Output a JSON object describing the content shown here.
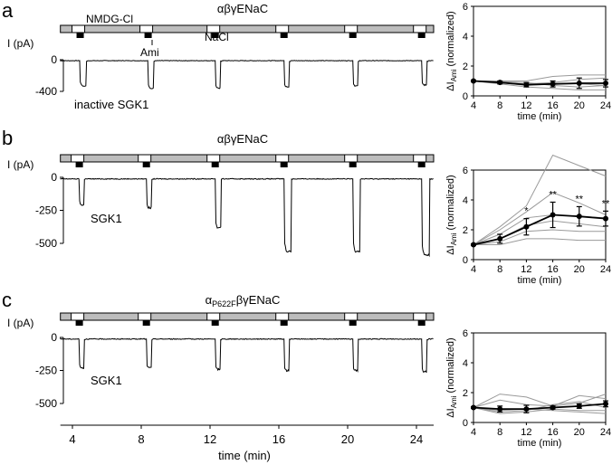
{
  "panels": [
    {
      "letter": "a",
      "title": "αβγENaC",
      "trace_ylabel": "I (pA)",
      "trace_yticks": [
        "0",
        "-400"
      ],
      "trace_ymin": -400,
      "trace_label": "inactive SGK1",
      "bar_labels": {
        "nmdg": "NMDG-Cl",
        "ami": "Ami",
        "nacl": "NaCl"
      },
      "pulses": [
        {
          "t": 4.45,
          "peak": -330,
          "hold": -50,
          "width": 0.35
        },
        {
          "t": 8.4,
          "peak": -360,
          "hold": -50,
          "width": 0.3
        },
        {
          "t": 12.3,
          "peak": -360,
          "hold": -50,
          "width": 0.3
        },
        {
          "t": 16.3,
          "peak": -340,
          "hold": -50,
          "width": 0.3
        },
        {
          "t": 20.3,
          "peak": -330,
          "hold": -50,
          "width": 0.3
        },
        {
          "t": 24.3,
          "peak": -320,
          "hold": -50,
          "width": 0.3
        }
      ]
    },
    {
      "letter": "b",
      "title": "αβγENaC",
      "trace_ylabel": "I (pA)",
      "trace_yticks": [
        "0",
        "-250",
        "-500"
      ],
      "trace_ymin": -500,
      "trace_label": "SGK1",
      "pulses": [
        {
          "t": 4.4,
          "peak": -210,
          "hold": -35,
          "width": 0.3
        },
        {
          "t": 8.3,
          "peak": -230,
          "hold": -35,
          "width": 0.3
        },
        {
          "t": 12.3,
          "peak": -380,
          "hold": -35,
          "width": 0.35
        },
        {
          "t": 16.3,
          "peak": -560,
          "hold": -35,
          "width": 0.4
        },
        {
          "t": 20.3,
          "peak": -560,
          "hold": -35,
          "width": 0.4
        },
        {
          "t": 24.3,
          "peak": -590,
          "hold": -35,
          "width": 0.45
        }
      ]
    },
    {
      "letter": "c",
      "title_prefix": "α",
      "title_sub": "P622F",
      "title_suffix": "βγENaC",
      "trace_ylabel": "I (pA)",
      "trace_yticks": [
        "0",
        "-250",
        "-500"
      ],
      "trace_ymin": -500,
      "trace_label": "SGK1",
      "pulses": [
        {
          "t": 4.4,
          "peak": -230,
          "hold": -40,
          "width": 0.3
        },
        {
          "t": 8.3,
          "peak": -230,
          "hold": -40,
          "width": 0.3
        },
        {
          "t": 12.3,
          "peak": -240,
          "hold": -40,
          "width": 0.3
        },
        {
          "t": 16.3,
          "peak": -250,
          "hold": -40,
          "width": 0.3
        },
        {
          "t": 20.3,
          "peak": -250,
          "hold": -40,
          "width": 0.3
        },
        {
          "t": 24.3,
          "peak": -260,
          "hold": -40,
          "width": 0.3
        }
      ]
    }
  ],
  "trace_xaxis": {
    "ticks": [
      "4",
      "8",
      "12",
      "16",
      "20",
      "24"
    ],
    "label": "time (min)"
  },
  "chart_data": [
    {
      "type": "line",
      "panel": "a",
      "ylabel_prefix": "ΔI",
      "ylabel_sub": "Ami",
      "ylabel_suffix": " (normalized)",
      "xlabel": "time (min)",
      "x": [
        4,
        8,
        12,
        16,
        20,
        24
      ],
      "xlim": [
        4,
        24
      ],
      "ylim": [
        0,
        6
      ],
      "yticks": [
        0,
        2,
        4,
        6
      ],
      "mean": [
        1.0,
        0.9,
        0.75,
        0.8,
        0.85,
        0.85
      ],
      "error": [
        0.05,
        0.1,
        0.15,
        0.2,
        0.35,
        0.25
      ],
      "significance": [
        "",
        "",
        "",
        "",
        "",
        ""
      ],
      "individual": [
        [
          1.0,
          1.0,
          1.0,
          1.3,
          1.4,
          1.4
        ],
        [
          1.0,
          0.9,
          0.8,
          0.9,
          1.1,
          1.2
        ],
        [
          1.0,
          0.8,
          0.6,
          0.5,
          0.4,
          0.4
        ],
        [
          1.0,
          0.9,
          0.7,
          0.8,
          0.8,
          0.7
        ],
        [
          1.0,
          0.95,
          0.9,
          0.7,
          0.6,
          0.7
        ]
      ]
    },
    {
      "type": "line",
      "panel": "b",
      "ylabel_prefix": "ΔI",
      "ylabel_sub": "Ami",
      "ylabel_suffix": " (normalized)",
      "xlabel": "time (min)",
      "x": [
        4,
        8,
        12,
        16,
        20,
        24
      ],
      "xlim": [
        4,
        24
      ],
      "ylim": [
        0,
        6
      ],
      "yticks": [
        0,
        2,
        4,
        6
      ],
      "mean": [
        1.0,
        1.4,
        2.2,
        3.0,
        2.9,
        2.75
      ],
      "error": [
        0.05,
        0.3,
        0.55,
        0.85,
        0.65,
        0.5
      ],
      "significance": [
        "",
        "",
        "*",
        "**",
        "**",
        "**"
      ],
      "individual": [
        [
          1.0,
          2.2,
          3.6,
          7.0,
          6.3,
          5.6
        ],
        [
          1.0,
          2.0,
          3.2,
          4.5,
          3.8,
          3.0
        ],
        [
          1.0,
          1.7,
          2.8,
          3.0,
          2.9,
          2.8
        ],
        [
          1.0,
          1.4,
          2.3,
          2.6,
          2.4,
          2.2
        ],
        [
          1.0,
          1.2,
          1.9,
          2.0,
          1.9,
          1.9
        ],
        [
          1.0,
          1.0,
          1.4,
          1.4,
          1.3,
          1.3
        ]
      ]
    },
    {
      "type": "line",
      "panel": "c",
      "ylabel_prefix": "ΔI",
      "ylabel_sub": "Ami",
      "ylabel_suffix": " (normalized)",
      "xlabel": "time (min)",
      "x": [
        4,
        8,
        12,
        16,
        20,
        24
      ],
      "xlim": [
        4,
        24
      ],
      "ylim": [
        0,
        6
      ],
      "yticks": [
        0,
        2,
        4,
        6
      ],
      "mean": [
        1.0,
        0.9,
        0.9,
        1.0,
        1.1,
        1.25
      ],
      "error": [
        0.05,
        0.2,
        0.25,
        0.1,
        0.15,
        0.2
      ],
      "significance": [
        "",
        "",
        "",
        "",
        "",
        ""
      ],
      "individual": [
        [
          1.0,
          1.9,
          1.7,
          1.1,
          1.3,
          1.9
        ],
        [
          1.0,
          1.5,
          1.2,
          1.1,
          1.8,
          1.6
        ],
        [
          1.0,
          0.7,
          0.8,
          1.2,
          1.4,
          1.0
        ],
        [
          1.0,
          0.6,
          0.7,
          0.9,
          0.8,
          0.8
        ],
        [
          1.0,
          0.8,
          0.9,
          0.8,
          0.7,
          0.6
        ]
      ]
    }
  ]
}
